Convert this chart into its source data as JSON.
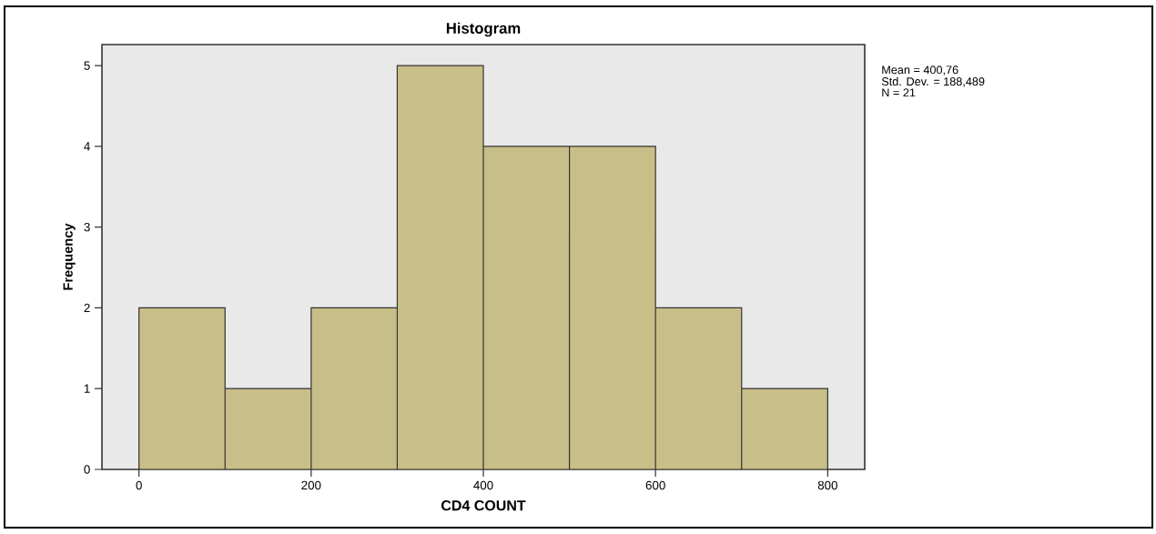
{
  "chart_data": {
    "type": "histogram",
    "title": "Histogram",
    "xlabel": "CD4 COUNT",
    "ylabel": "Frequency",
    "bins": [
      0,
      100,
      200,
      300,
      400,
      500,
      600,
      700,
      800
    ],
    "values": [
      2,
      1,
      2,
      5,
      4,
      4,
      2,
      1
    ],
    "color": "#c8bf88",
    "xlim": [
      -43,
      843
    ],
    "ylim": [
      0,
      5.26
    ],
    "xticks": [
      0,
      200,
      400,
      600,
      800
    ],
    "yticks": [
      0,
      1,
      2,
      3,
      4,
      5
    ],
    "annotations": [
      "Mean = 400,76",
      "Std. Dev. = 188,489",
      "N = 21"
    ]
  }
}
